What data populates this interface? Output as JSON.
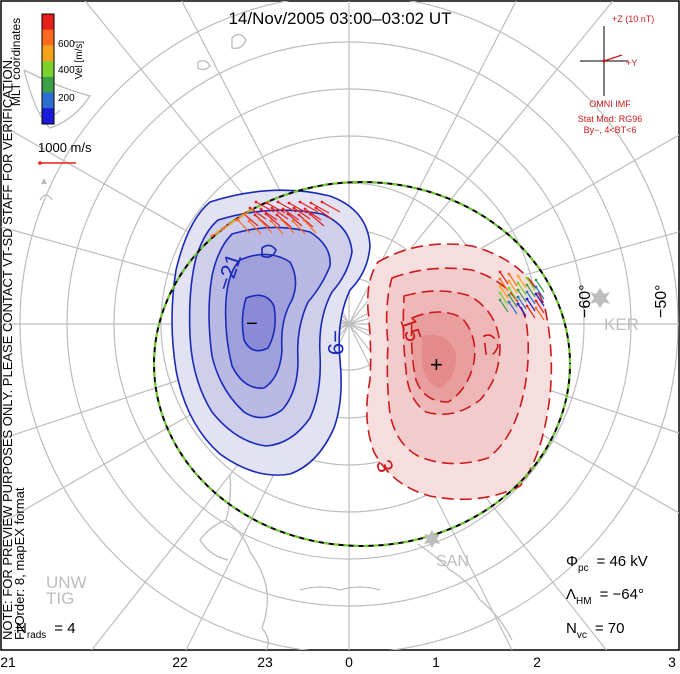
{
  "title": "14/Nov/2005 03:00–03:02 UT",
  "coordinates": "MLT coordinates",
  "velocity_scale": {
    "axis_label": "Vel [m/s]",
    "ticks": [
      "600",
      "400",
      "200"
    ],
    "colors": [
      "#e8201c",
      "#ff6a1c",
      "#f6a21c",
      "#7ed02a",
      "#3aa04a",
      "#2b6fd0",
      "#1a1ad8"
    ]
  },
  "reference_vector_label": "1000 m/s",
  "watermark": "NOTE: FOR PREVIEW PURPOSES ONLY. PLEASE CONTACT VT-SD STAFF FOR VERIFICATION.",
  "fit_info": "FitOrder: 8, mapEX format",
  "imf": {
    "z_label": "+Z (10 nT)",
    "y_label": "+Y",
    "source": "OMNI IMF",
    "stat_mod": "Stat Mod: RG96",
    "condition": "By−, 4<BT<6"
  },
  "contours": {
    "neg_labels": [
      "−21",
      "−9"
    ],
    "pos_labels": [
      "15",
      "3"
    ],
    "min_marker": "−",
    "max_marker": "+"
  },
  "station_labels": [
    "KER",
    "SAN",
    "UNW",
    "TIG"
  ],
  "latitude_labels": [
    "−60°",
    "−50°"
  ],
  "stats": {
    "phi_symbol": "Φ",
    "phi_sub": "pc",
    "phi_value": "= 46 kV",
    "lambda_symbol": "Λ",
    "lambda_sub": "HM",
    "lambda_value": "= −64°",
    "nvc_symbol": "N",
    "nvc_sub": "vc",
    "nvc_value": "= 70",
    "nrads_symbol": "N",
    "nrads_sub": "rads",
    "nrads_value": "= 4"
  },
  "mlt_ticks": [
    "21",
    "22",
    "23",
    "0",
    "1",
    "2",
    "3"
  ],
  "brand_colors": {
    "negative_contour": "#1a2ab8",
    "positive_contour": "#cc1a1a",
    "boundary": "#6fd02a"
  }
}
